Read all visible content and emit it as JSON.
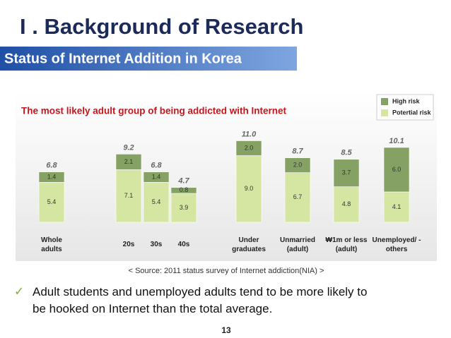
{
  "slide": {
    "title": "I . Background of Research",
    "section": "Status of Internet Addition in Korea",
    "source": "< Source: 2011 status survey of Internet addiction(NIA) >",
    "bullet": "Adult students and unemployed adults tend to be more likely to be hooked on Internet than the total average.",
    "page_number": "13"
  },
  "chart_data": {
    "type": "stacked-bar",
    "title": "The most likely adult group of being addicted with Internet",
    "categories": [
      "Whole\nadults",
      "20s",
      "30s",
      "40s",
      "Under\ngraduates",
      "Unmarried\n(adult)",
      "₩1m or less\n(adult)",
      "Unemployed/ -\nothers"
    ],
    "series": [
      {
        "name": "Potertial risk",
        "color": "#d5e6a2",
        "values": [
          5.4,
          7.1,
          5.4,
          3.9,
          9.0,
          6.7,
          4.8,
          4.1
        ],
        "value_labels": [
          "5.4",
          "7.1",
          "5.4",
          "3.9",
          "9.0",
          "6.7",
          "4.8",
          "4.1"
        ]
      },
      {
        "name": "High risk",
        "color": "#86a164",
        "values": [
          1.4,
          2.1,
          1.4,
          0.8,
          2.0,
          2.0,
          3.7,
          6.0
        ],
        "value_labels": [
          "1.4",
          "2.1",
          "1.4",
          "0.8",
          "2.0",
          "2.0",
          "3.7",
          "6.0"
        ]
      }
    ],
    "totals": [
      6.8,
      9.2,
      6.8,
      4.7,
      11.0,
      8.7,
      8.5,
      10.1
    ],
    "totals_labels": [
      "6.8",
      "9.2",
      "6.8",
      "4.7",
      "11.0",
      "8.7",
      "8.5",
      "10.1"
    ],
    "ylim": [
      0,
      12
    ],
    "grid": false,
    "legend": "top-right"
  }
}
